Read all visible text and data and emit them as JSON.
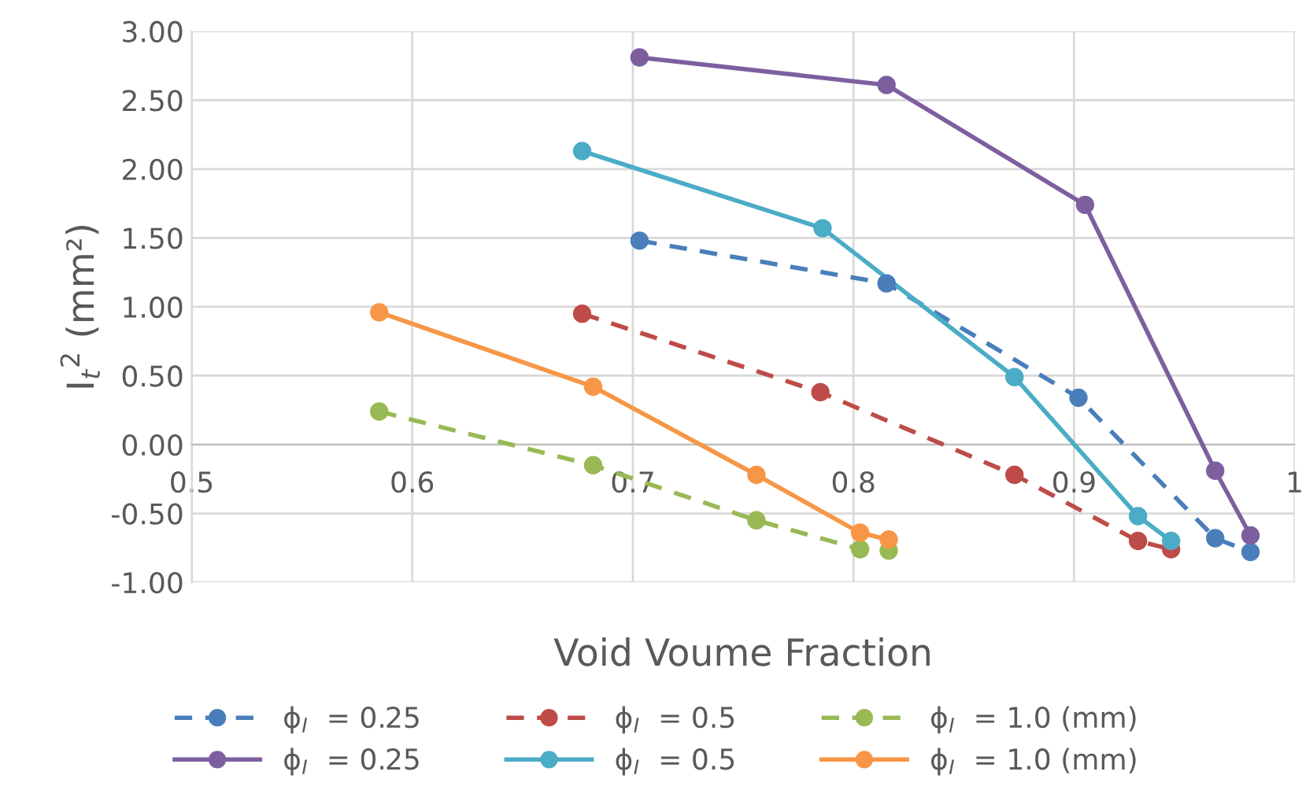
{
  "chart_data": {
    "type": "line",
    "xlabel": "Void Voume Fraction",
    "ylabel": "I$_{t}$$^{2}$ (mm²)",
    "xlim": [
      0.5,
      1.0
    ],
    "xticks": [
      0.5,
      0.6,
      0.7,
      0.8,
      0.9,
      1
    ],
    "ylim": [
      -1.0,
      3.0
    ],
    "yticks": [
      {
        "value": -1.0,
        "label": "-1.00"
      },
      {
        "value": -0.5,
        "label": "-0.50"
      },
      {
        "value": 0,
        "label": "0.00"
      },
      {
        "value": 0.5,
        "label": "0.50"
      },
      {
        "value": 1.0,
        "label": "1.00"
      },
      {
        "value": 1.5,
        "label": "1.50"
      },
      {
        "value": 2.0,
        "label": "2.00"
      },
      {
        "value": 2.5,
        "label": "2.50"
      },
      {
        "value": 3.0,
        "label": "3.00"
      }
    ],
    "grid": true,
    "legend": "bottom",
    "marker": "circle",
    "series": [
      {
        "name": "ϕ$_{I}$  = 0.25",
        "color": "#4a7ebb",
        "line_style": "dashed",
        "x": [
          0.703,
          0.815,
          0.902,
          0.964,
          0.98
        ],
        "values": [
          1.48,
          1.17,
          0.34,
          -0.68,
          -0.78
        ]
      },
      {
        "name": "ϕ$_{I}$  = 0.5",
        "color": "#be4b48",
        "line_style": "dashed",
        "x": [
          0.677,
          0.785,
          0.873,
          0.929,
          0.944
        ],
        "values": [
          0.95,
          0.38,
          -0.22,
          -0.7,
          -0.76
        ]
      },
      {
        "name": "ϕ$_{I}$  = 1.0 (mm)",
        "color": "#98b954",
        "line_style": "dashed",
        "x": [
          0.585,
          0.682,
          0.756,
          0.803,
          0.816
        ],
        "values": [
          0.24,
          -0.15,
          -0.55,
          -0.76,
          -0.77
        ]
      },
      {
        "name": "ϕ$_{I}$  = 0.25",
        "color": "#7d5fa0",
        "line_style": "solid",
        "x": [
          0.703,
          0.815,
          0.905,
          0.964,
          0.98
        ],
        "values": [
          2.81,
          2.61,
          1.74,
          -0.19,
          -0.66
        ]
      },
      {
        "name": "ϕ$_{I}$  = 0.5",
        "color": "#4bacc6",
        "line_style": "solid",
        "x": [
          0.677,
          0.786,
          0.873,
          0.929,
          0.944
        ],
        "values": [
          2.13,
          1.57,
          0.49,
          -0.52,
          -0.7
        ]
      },
      {
        "name": "ϕ$_{I}$  = 1.0 (mm)",
        "color": "#f79646",
        "line_style": "solid",
        "x": [
          0.585,
          0.682,
          0.756,
          0.803,
          0.816
        ],
        "values": [
          0.96,
          0.42,
          -0.22,
          -0.64,
          -0.69
        ]
      }
    ]
  }
}
